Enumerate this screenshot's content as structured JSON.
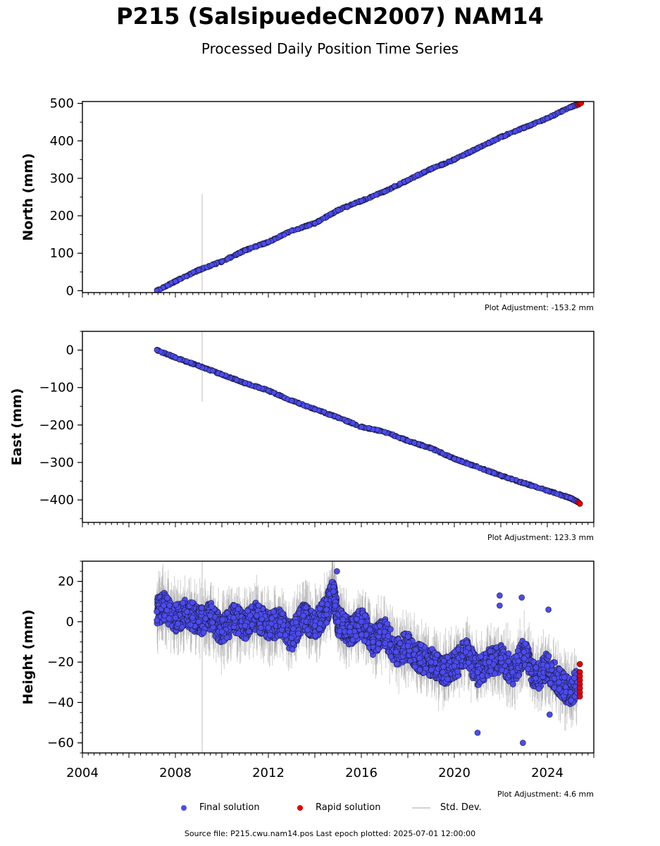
{
  "title": "P215 (SalsipuedeCN2007) NAM14",
  "subtitle": "Processed Daily Position Time Series",
  "source_note": "Source file: P215.cwu.nam14.pos  Last epoch plotted: 2025-07-01 12:00:00",
  "legend": {
    "final": "Final solution",
    "rapid": "Rapid solution",
    "stddev": "Std. Dev."
  },
  "colors": {
    "final": "#4b4bf0",
    "rapid": "#e00000",
    "stddev": "#d3d3d3",
    "marker_edge": "#1a1a3a"
  },
  "chart_data": [
    {
      "type": "scatter",
      "ylabel": "North (mm)",
      "adjustment": "Plot Adjustment: -153.2 mm",
      "xlim": [
        2004,
        2026
      ],
      "ylim": [
        -5,
        505
      ],
      "yticks": [
        0,
        100,
        200,
        300,
        400,
        500
      ],
      "ytick_labels": [
        "0",
        "100",
        "200",
        "300",
        "400",
        "500"
      ],
      "x_minor_step": 0.25,
      "y_minor_step": 50,
      "show_xtick_labels": false,
      "series": [
        {
          "kind": "final",
          "x": [
            2007.2,
            2008.0,
            2009.0,
            2010.0,
            2011.0,
            2012.0,
            2013.0,
            2014.0,
            2015.0,
            2016.0,
            2017.0,
            2018.0,
            2019.0,
            2020.0,
            2021.0,
            2022.0,
            2023.0,
            2024.0,
            2025.0,
            2025.3
          ],
          "y": [
            0,
            25,
            55,
            78,
            108,
            130,
            160,
            180,
            215,
            240,
            265,
            295,
            325,
            350,
            380,
            410,
            435,
            460,
            490,
            497
          ]
        },
        {
          "kind": "rapid",
          "x": [
            2025.35,
            2025.4,
            2025.45
          ],
          "y": [
            497,
            500,
            501
          ]
        },
        {
          "kind": "stddev",
          "x": [
            2009.15,
            2009.15
          ],
          "y": [
            0,
            258
          ]
        }
      ]
    },
    {
      "type": "scatter",
      "ylabel": "East (mm)",
      "adjustment": "Plot Adjustment: 123.3 mm",
      "xlim": [
        2004,
        2026
      ],
      "ylim": [
        -460,
        50
      ],
      "yticks": [
        0,
        -100,
        -200,
        -300,
        -400
      ],
      "ytick_labels": [
        "0",
        "−100",
        "−200",
        "−300",
        "−400"
      ],
      "x_minor_step": 0.25,
      "y_minor_step": 50,
      "show_xtick_labels": false,
      "series": [
        {
          "kind": "final",
          "x": [
            2007.2,
            2008.0,
            2009.0,
            2010.0,
            2011.0,
            2012.0,
            2013.0,
            2014.0,
            2015.0,
            2016.0,
            2017.0,
            2018.0,
            2019.0,
            2020.0,
            2021.0,
            2022.0,
            2023.0,
            2024.0,
            2025.0,
            2025.3
          ],
          "y": [
            0,
            -20,
            -42,
            -65,
            -88,
            -108,
            -135,
            -158,
            -180,
            -205,
            -218,
            -242,
            -262,
            -290,
            -312,
            -335,
            -355,
            -375,
            -395,
            -405
          ]
        },
        {
          "kind": "rapid",
          "x": [
            2025.35,
            2025.4
          ],
          "y": [
            -407,
            -410
          ]
        },
        {
          "kind": "stddev",
          "x": [
            2009.15,
            2009.15
          ],
          "y": [
            50,
            -138
          ]
        }
      ]
    },
    {
      "type": "scatter",
      "ylabel": "Height (mm)",
      "adjustment": "Plot Adjustment: 4.6 mm",
      "xlim": [
        2004,
        2026
      ],
      "ylim": [
        -65,
        30
      ],
      "yticks": [
        20,
        0,
        -20,
        -40,
        -60
      ],
      "ytick_labels": [
        "20",
        "0",
        "−20",
        "−40",
        "−60"
      ],
      "x_minor_step": 0.25,
      "y_minor_step": 5,
      "show_xtick_labels": true,
      "xticks": [
        2004,
        2008,
        2012,
        2016,
        2020,
        2024
      ],
      "xtick_labels": [
        "2004",
        "2008",
        "2012",
        "2016",
        "2020",
        "2024"
      ],
      "series": [
        {
          "kind": "final",
          "x": [
            2007.2,
            2007.5,
            2008.0,
            2008.5,
            2009.0,
            2009.5,
            2010.0,
            2010.5,
            2011.0,
            2011.5,
            2012.0,
            2012.5,
            2013.0,
            2013.5,
            2014.0,
            2014.5,
            2014.8,
            2015.0,
            2015.5,
            2016.0,
            2016.5,
            2017.0,
            2017.5,
            2018.0,
            2018.5,
            2019.0,
            2019.5,
            2020.0,
            2020.5,
            2021.0,
            2021.5,
            2022.0,
            2022.5,
            2023.0,
            2023.5,
            2024.0,
            2024.5,
            2025.0,
            2025.3
          ],
          "y": [
            5,
            8,
            2,
            5,
            0,
            3,
            -5,
            2,
            -2,
            3,
            -3,
            0,
            -8,
            3,
            -2,
            6,
            15,
            0,
            -5,
            0,
            -10,
            -5,
            -15,
            -12,
            -18,
            -20,
            -25,
            -22,
            -15,
            -25,
            -20,
            -18,
            -25,
            -15,
            -28,
            -22,
            -30,
            -35,
            -30
          ]
        },
        {
          "kind": "final-outlier",
          "x": [
            2014.95,
            2021.0,
            2021.95,
            2021.95,
            2022.9,
            2022.95,
            2024.05,
            2024.1
          ],
          "y": [
            25,
            -55,
            13,
            8,
            12,
            -60,
            6,
            -46
          ]
        },
        {
          "kind": "rapid",
          "x": [
            2025.4,
            2025.4,
            2025.4,
            2025.4,
            2025.4,
            2025.4,
            2025.4,
            2025.4
          ],
          "y": [
            -21,
            -25,
            -27,
            -29,
            -31,
            -33,
            -35,
            -37
          ]
        },
        {
          "kind": "stddev",
          "x": [
            2009.15,
            2009.15
          ],
          "y": [
            30,
            -65
          ]
        }
      ]
    }
  ]
}
